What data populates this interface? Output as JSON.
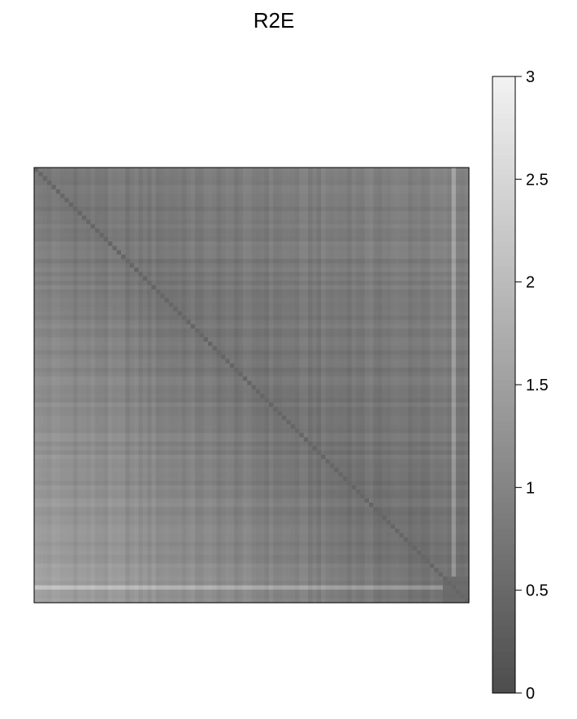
{
  "chart_data": {
    "type": "heatmap",
    "title": "R2E",
    "xlabel": "",
    "ylabel": "",
    "color_scale": {
      "low_value": 0,
      "high_value": 3,
      "low_color": "#4d4d4d",
      "high_color": "#f2f2f2",
      "ticks": [
        {
          "value": 0,
          "label": "0"
        },
        {
          "value": 0.5,
          "label": "0.5"
        },
        {
          "value": 1,
          "label": "1"
        },
        {
          "value": 1.5,
          "label": "1.5"
        },
        {
          "value": 2,
          "label": "2"
        },
        {
          "value": 2.5,
          "label": "2.5"
        },
        {
          "value": 3,
          "label": "3"
        }
      ]
    },
    "matrix": {
      "rows": 100,
      "cols": 100,
      "diagonal_value": 0.0,
      "value_range_estimate": [
        0.0,
        2.2
      ],
      "note_pattern": "symmetric distance-like matrix; values increase toward lower-left and upper-right off-diagonal corners"
    },
    "grid": false,
    "legend": "right"
  }
}
